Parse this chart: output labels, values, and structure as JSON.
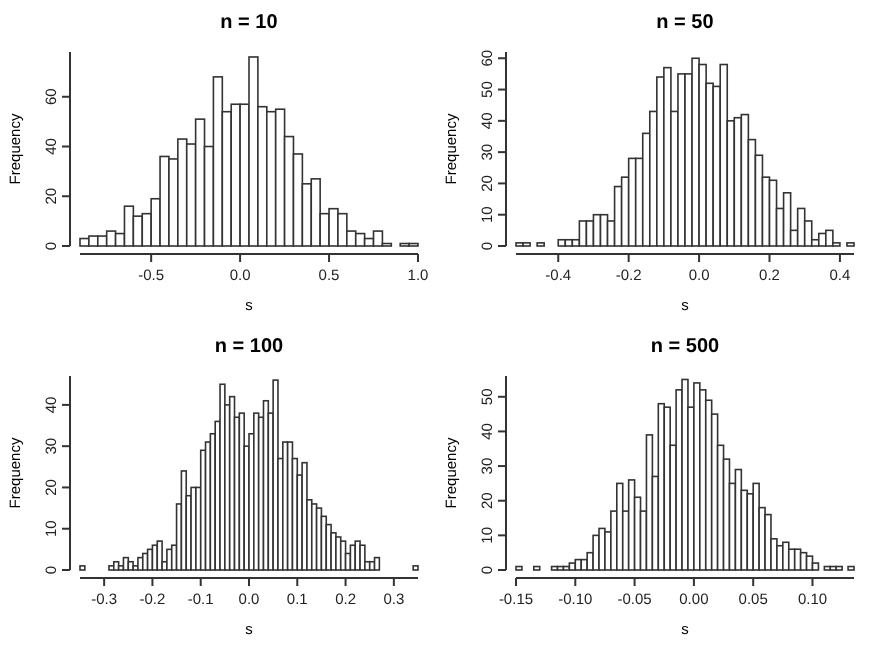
{
  "chart_data": [
    {
      "type": "histogram",
      "title": "n = 10",
      "xlabel": "s",
      "ylabel": "Frequency",
      "color": "#ffffff",
      "bins": [
        -0.9,
        -0.85,
        -0.8,
        -0.75,
        -0.7,
        -0.65,
        -0.6,
        -0.55,
        -0.5,
        -0.45,
        -0.4,
        -0.35,
        -0.3,
        -0.25,
        -0.2,
        -0.15,
        -0.1,
        -0.05,
        0,
        0.05,
        0.1,
        0.15,
        0.2,
        0.25,
        0.3,
        0.35,
        0.4,
        0.45,
        0.5,
        0.55,
        0.6,
        0.65,
        0.7,
        0.75,
        0.8,
        0.85,
        0.9,
        0.95,
        1.0
      ],
      "values": [
        3,
        4,
        4,
        6,
        5,
        16,
        12,
        13,
        19,
        36,
        35,
        43,
        41,
        51,
        40,
        68,
        54,
        57,
        57,
        76,
        56,
        54,
        55,
        44,
        37,
        25,
        27,
        13,
        15,
        13,
        6,
        5,
        3,
        6,
        1,
        0,
        1,
        1
      ],
      "xlim": [
        -0.9,
        1.0
      ],
      "ylim": [
        0,
        78
      ],
      "xticks": [
        {
          "value": -0.5,
          "label": "-0.5"
        },
        {
          "value": 0,
          "label": "0.0"
        },
        {
          "value": 0.5,
          "label": "0.5"
        },
        {
          "value": 1,
          "label": "1.0"
        }
      ],
      "yticks": [
        0,
        20,
        40,
        60
      ]
    },
    {
      "type": "histogram",
      "title": "n = 50",
      "xlabel": "s",
      "ylabel": "Frequency",
      "color": "#ffffff",
      "bins": [
        -0.52,
        -0.5,
        -0.48,
        -0.46,
        -0.44,
        -0.42,
        -0.4,
        -0.38,
        -0.36,
        -0.34,
        -0.32,
        -0.3,
        -0.28,
        -0.26,
        -0.24,
        -0.22,
        -0.2,
        -0.18,
        -0.16,
        -0.14,
        -0.12,
        -0.1,
        -0.08,
        -0.06,
        -0.04,
        -0.02,
        0,
        0.02,
        0.04,
        0.06,
        0.08,
        0.1,
        0.12,
        0.14,
        0.16,
        0.18,
        0.2,
        0.22,
        0.24,
        0.26,
        0.28,
        0.3,
        0.32,
        0.34,
        0.36,
        0.38,
        0.4,
        0.42,
        0.44
      ],
      "values": [
        1,
        1,
        0,
        1,
        0,
        0,
        2,
        2,
        2,
        8,
        8,
        10,
        10,
        8,
        19,
        22,
        28,
        28,
        36,
        43,
        54,
        57,
        43,
        55,
        55,
        60,
        58,
        52,
        51,
        58,
        40,
        41,
        42,
        34,
        29,
        22,
        21,
        12,
        17,
        5,
        12,
        8,
        2,
        4,
        5,
        1,
        0,
        1
      ],
      "xlim": [
        -0.52,
        0.44
      ],
      "ylim": [
        0,
        62
      ],
      "xticks": [
        {
          "value": -0.4,
          "label": "-0.4"
        },
        {
          "value": -0.2,
          "label": "-0.2"
        },
        {
          "value": 0,
          "label": "0.0"
        },
        {
          "value": 0.2,
          "label": "0.2"
        },
        {
          "value": 0.4,
          "label": "0.4"
        }
      ],
      "yticks": [
        0,
        10,
        20,
        30,
        40,
        50,
        60
      ]
    },
    {
      "type": "histogram",
      "title": "n = 100",
      "xlabel": "s",
      "ylabel": "Frequency",
      "color": "#ffffff",
      "bins": [
        -0.35,
        -0.34,
        -0.29,
        -0.28,
        -0.27,
        -0.26,
        -0.25,
        -0.24,
        -0.23,
        -0.22,
        -0.21,
        -0.2,
        -0.19,
        -0.18,
        -0.17,
        -0.16,
        -0.15,
        -0.14,
        -0.13,
        -0.12,
        -0.11,
        -0.1,
        -0.09,
        -0.08,
        -0.07,
        -0.06,
        -0.05,
        -0.04,
        -0.03,
        -0.02,
        -0.01,
        0,
        0.01,
        0.02,
        0.03,
        0.04,
        0.05,
        0.06,
        0.07,
        0.08,
        0.09,
        0.1,
        0.11,
        0.12,
        0.13,
        0.14,
        0.15,
        0.16,
        0.17,
        0.18,
        0.19,
        0.2,
        0.21,
        0.22,
        0.23,
        0.24,
        0.25,
        0.26,
        0.27,
        0.34,
        0.35
      ],
      "values": [
        1,
        0,
        1,
        2,
        1,
        3,
        2,
        1,
        3,
        4,
        5,
        6,
        7,
        2,
        5,
        6,
        16,
        24,
        18,
        20,
        20,
        29,
        31,
        33,
        36,
        45,
        40,
        42,
        37,
        38,
        30,
        33,
        38,
        37,
        41,
        38,
        46,
        27,
        31,
        31,
        27,
        23,
        26,
        17,
        16,
        15,
        13,
        11,
        9,
        8,
        7,
        4,
        6,
        7,
        6,
        2,
        2,
        3,
        0,
        1
      ],
      "xlim": [
        -0.35,
        0.35
      ],
      "ylim": [
        0,
        47
      ],
      "xticks": [
        {
          "value": -0.3,
          "label": "-0.3"
        },
        {
          "value": -0.2,
          "label": "-0.2"
        },
        {
          "value": -0.1,
          "label": "-0.1"
        },
        {
          "value": 0,
          "label": "0.0"
        },
        {
          "value": 0.1,
          "label": "0.1"
        },
        {
          "value": 0.2,
          "label": "0.2"
        },
        {
          "value": 0.3,
          "label": "0.3"
        }
      ],
      "yticks": [
        0,
        10,
        20,
        30,
        40
      ]
    },
    {
      "type": "histogram",
      "title": "n = 500",
      "xlabel": "s",
      "ylabel": "Frequency",
      "color": "#ffffff",
      "bins": [
        -0.15,
        -0.145,
        -0.14,
        -0.135,
        -0.13,
        -0.125,
        -0.12,
        -0.115,
        -0.11,
        -0.105,
        -0.1,
        -0.095,
        -0.09,
        -0.085,
        -0.08,
        -0.075,
        -0.07,
        -0.065,
        -0.06,
        -0.055,
        -0.05,
        -0.045,
        -0.04,
        -0.035,
        -0.03,
        -0.025,
        -0.02,
        -0.015,
        -0.01,
        -0.005,
        0,
        0.005,
        0.01,
        0.015,
        0.02,
        0.025,
        0.03,
        0.035,
        0.04,
        0.045,
        0.05,
        0.055,
        0.06,
        0.065,
        0.07,
        0.075,
        0.08,
        0.085,
        0.09,
        0.095,
        0.1,
        0.105,
        0.11,
        0.115,
        0.12,
        0.125,
        0.13,
        0.135
      ],
      "values": [
        1,
        0,
        0,
        1,
        0,
        0,
        1,
        1,
        1,
        2,
        3,
        3,
        5,
        10,
        12,
        11,
        17,
        25,
        17,
        26,
        21,
        17,
        39,
        27,
        48,
        47,
        36,
        52,
        55,
        47,
        54,
        52,
        49,
        45,
        36,
        32,
        25,
        29,
        23,
        22,
        25,
        18,
        16,
        9,
        7,
        8,
        6,
        6,
        5,
        4,
        2,
        0,
        1,
        1,
        1,
        0,
        1
      ],
      "xlim": [
        -0.15,
        0.135
      ],
      "ylim": [
        0,
        56
      ],
      "xticks": [
        {
          "value": -0.15,
          "label": "-0.15"
        },
        {
          "value": -0.1,
          "label": "-0.10"
        },
        {
          "value": -0.05,
          "label": "-0.05"
        },
        {
          "value": 0,
          "label": "0.00"
        },
        {
          "value": 0.05,
          "label": "0.05"
        },
        {
          "value": 0.1,
          "label": "0.10"
        }
      ],
      "yticks": [
        0,
        10,
        20,
        30,
        40,
        50
      ]
    }
  ]
}
